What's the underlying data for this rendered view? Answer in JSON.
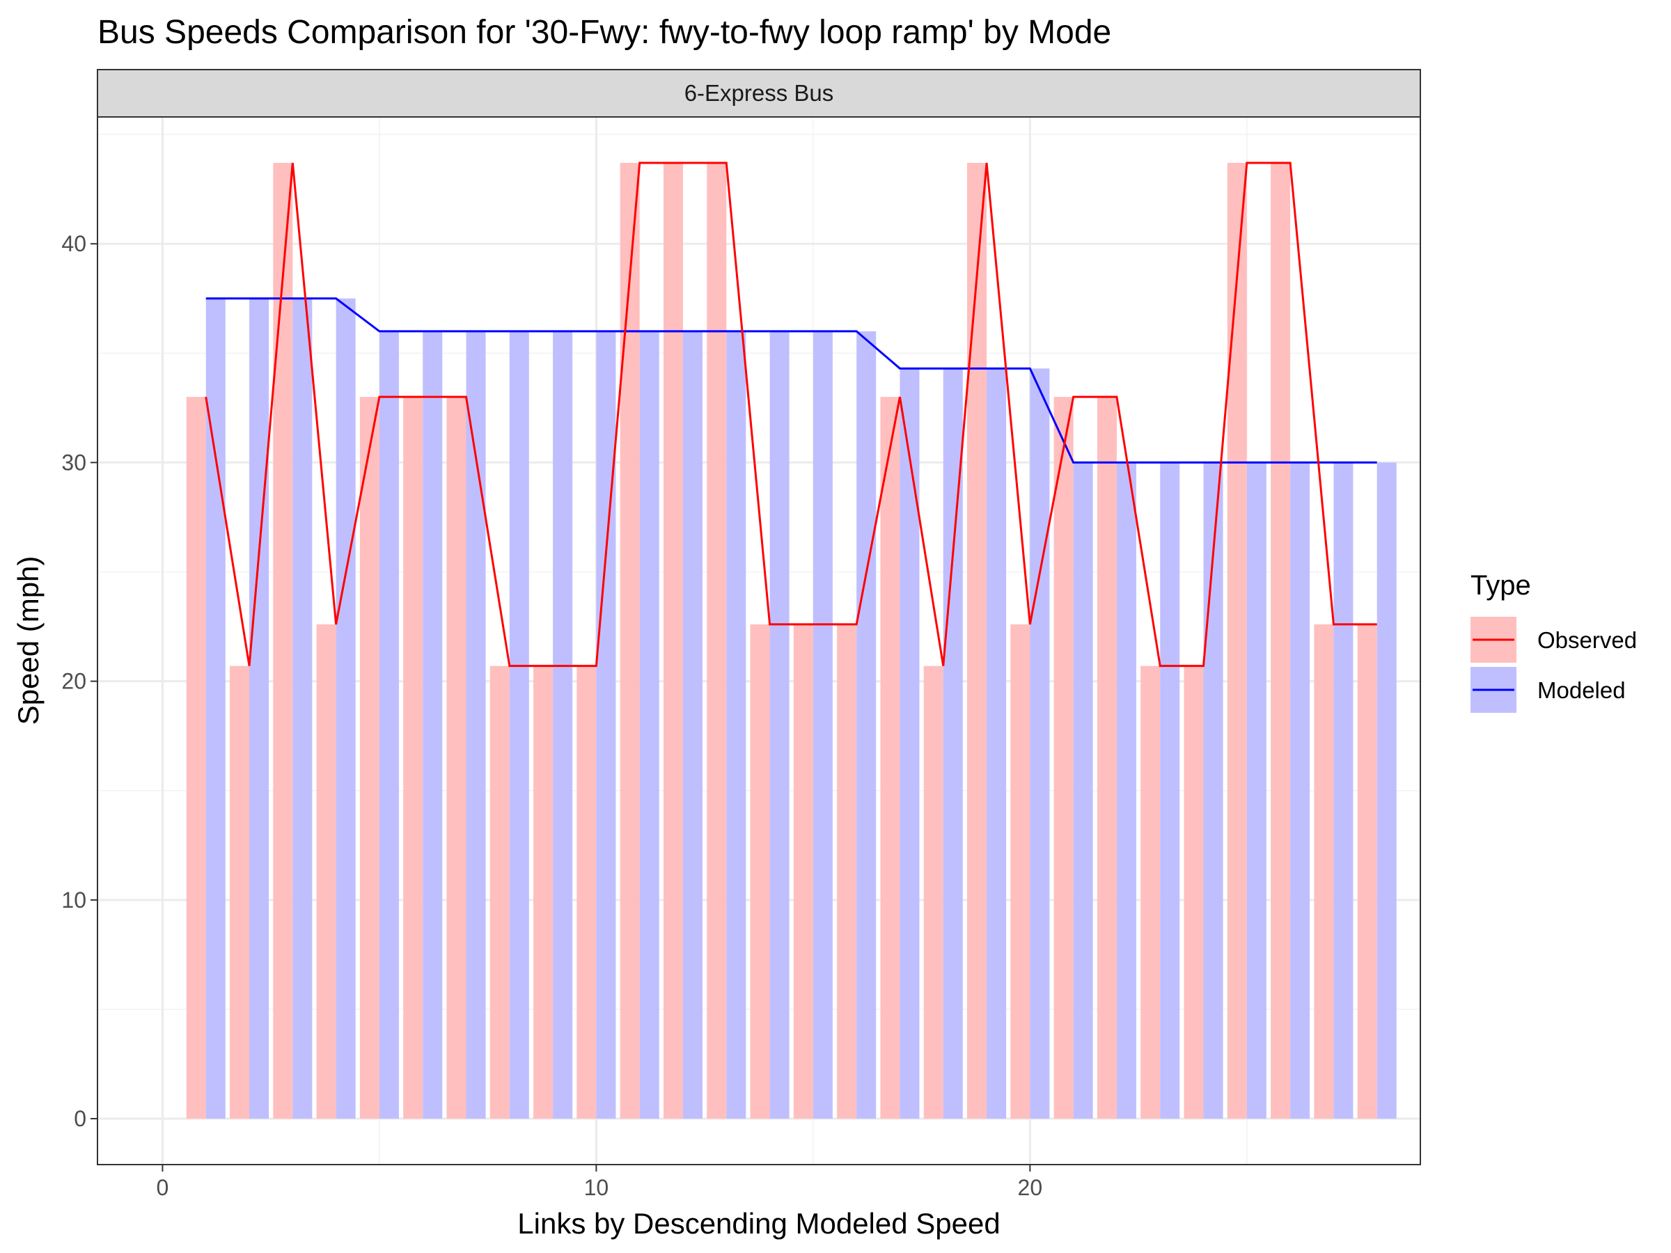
{
  "chart_data": {
    "type": "bar",
    "title": "Bus Speeds Comparison for '30-Fwy: fwy-to-fwy loop ramp' by Mode",
    "facet": "6-Express Bus",
    "xlabel": "Links by Descending Modeled Speed",
    "ylabel": "Speed (mph)",
    "xlim": [
      -1.5,
      29.0
    ],
    "ylim": [
      -2.1,
      45.8
    ],
    "x_ticks": [
      0,
      10,
      20
    ],
    "y_ticks": [
      0,
      10,
      20,
      30,
      40
    ],
    "grid": true,
    "legend": {
      "title": "Type",
      "position": "right"
    },
    "x": [
      1,
      2,
      3,
      4,
      5,
      6,
      7,
      8,
      9,
      10,
      11,
      12,
      13,
      14,
      15,
      16,
      17,
      18,
      19,
      20,
      21,
      22,
      23,
      24,
      25,
      26,
      27,
      28
    ],
    "series": [
      {
        "name": "Observed",
        "color": "#ff0000",
        "bar_color": "#ffbfbf",
        "values": [
          33.0,
          20.7,
          43.7,
          22.6,
          33.0,
          33.0,
          33.0,
          20.7,
          20.7,
          20.7,
          43.7,
          43.7,
          43.7,
          22.6,
          22.6,
          22.6,
          33.0,
          20.7,
          43.7,
          22.6,
          33.0,
          33.0,
          20.7,
          20.7,
          43.7,
          43.7,
          22.6,
          22.6
        ]
      },
      {
        "name": "Modeled",
        "color": "#0000ff",
        "bar_color": "#bfbfff",
        "values": [
          37.5,
          37.5,
          37.5,
          37.5,
          36.0,
          36.0,
          36.0,
          36.0,
          36.0,
          36.0,
          36.0,
          36.0,
          36.0,
          36.0,
          36.0,
          36.0,
          34.3,
          34.3,
          34.3,
          34.3,
          30.0,
          30.0,
          30.0,
          30.0,
          30.0,
          30.0,
          30.0,
          30.0
        ]
      }
    ]
  }
}
